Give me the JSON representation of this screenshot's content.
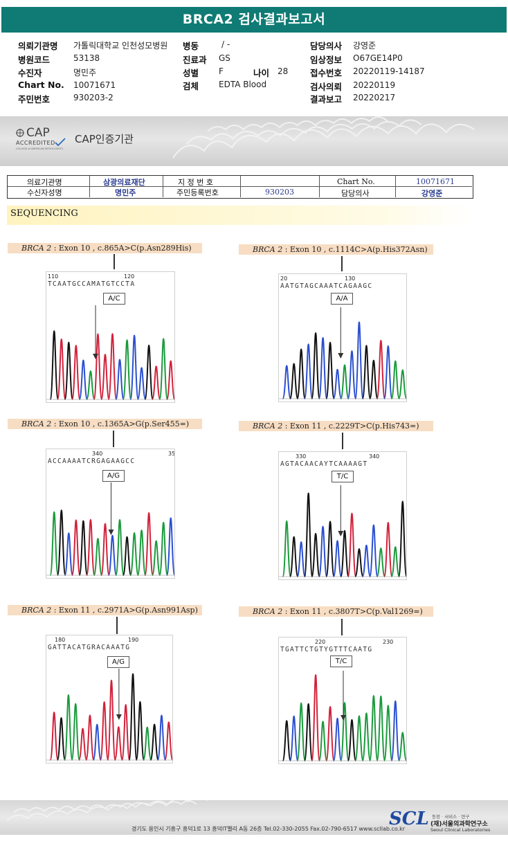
{
  "title": "BRCA2 검사결과보고서",
  "info": {
    "left": [
      {
        "label": "의뢰기관명",
        "value": "가톨릭대학교 인천성모병원"
      },
      {
        "label": "병원코드",
        "value": "53138"
      },
      {
        "label": "수진자",
        "value": "명민주"
      },
      {
        "label": "Chart No.",
        "value": "10071671"
      },
      {
        "label": "주민번호",
        "value": "930203-2"
      }
    ],
    "middle": [
      {
        "label": "병동",
        "value": "/ -"
      },
      {
        "label": "진료과",
        "value": "GS"
      },
      {
        "label": "성별",
        "value": "F"
      },
      {
        "label": "검체",
        "value": "EDTA Blood"
      }
    ],
    "age": {
      "label": "나이",
      "value": "28"
    },
    "right": [
      {
        "label": "담당의사",
        "value": "강영준"
      },
      {
        "label": "임상정보",
        "value": "O67GE14P0"
      },
      {
        "label": "접수번호",
        "value": "20220119-14187"
      },
      {
        "label": "검사의뢰",
        "value": "20220119"
      },
      {
        "label": "결과보고",
        "value": "20220217"
      }
    ]
  },
  "cap": {
    "logo_text": "CAP",
    "accredited": "ACCREDITED",
    "small": "COLLEGE of AMERICAN PATHOLOGISTS",
    "label": "CAP인증기관"
  },
  "patient_table": {
    "inst_label": "의료기관명",
    "inst_value": "삼광의료재단",
    "name_label": "수신자성명",
    "name_value": "명민주",
    "code_label": "지 정 번 호",
    "code_value": "",
    "id_label": "주민등록번호",
    "id_value": "930203",
    "chart_label": "Chart No.",
    "chart_value": "10071671",
    "doctor_label": "담당의사",
    "doctor_value": "강영준"
  },
  "section_title": "SEQUENCING",
  "panels": [
    {
      "gene": "BRCA 2",
      "desc": " : Exon 10 , c.865A>C(p.Asn289His)",
      "pos1": "110",
      "pos2": "120",
      "seq": "TCAATGCCAMATGTCCTA",
      "genotype": "A/C"
    },
    {
      "gene": "BRCA 2",
      "desc": " : Exon 10 , c.1114C>A(p.His372Asn)",
      "pos1": "20",
      "pos2": "130",
      "seq": "AATGTAGCAAATCAGAAGC",
      "genotype": "A/A"
    },
    {
      "gene": "BRCA 2",
      "desc": " : Exon 10 , c.1365A>G(p.Ser455=)",
      "pos1": "340",
      "pos2": "35",
      "seq": "ACCAAAATCRGAGAAGCC",
      "genotype": "A/G"
    },
    {
      "gene": "BRCA 2",
      "desc": " : Exon 11 , c.2229T>C(p.His743=)",
      "pos1": "330",
      "pos2": "340",
      "seq": "AGTACAACAYTCAAAAGT",
      "genotype": "T/C"
    },
    {
      "gene": "BRCA 2",
      "desc": " : Exon 11 , c.2971A>G(p.Asn991Asp)",
      "pos1": "180",
      "pos2": "190",
      "seq": "GATTACATGRACAAATG",
      "genotype": "A/G"
    },
    {
      "gene": "BRCA 2",
      "desc": " : Exon 11 , c.3807T>C(p.Val1269=)",
      "pos1": "220",
      "pos2": "230",
      "seq": "TGATTCTGTYGTTTCAATG",
      "genotype": "T/C"
    }
  ],
  "footer": {
    "address": "경기도 용인시 기흥구 흥덕1로 13 흥덕IT밸리 A동 26층  Tel.02-330-2055  Fax.02-790-6517  www.scllab.co.kr",
    "logo": "SCL",
    "org_small": "동정 · 서비스 · 연구",
    "org_name": "(재)서울의과학연구소",
    "org_en": "Seoul Clinical Laboratories"
  }
}
